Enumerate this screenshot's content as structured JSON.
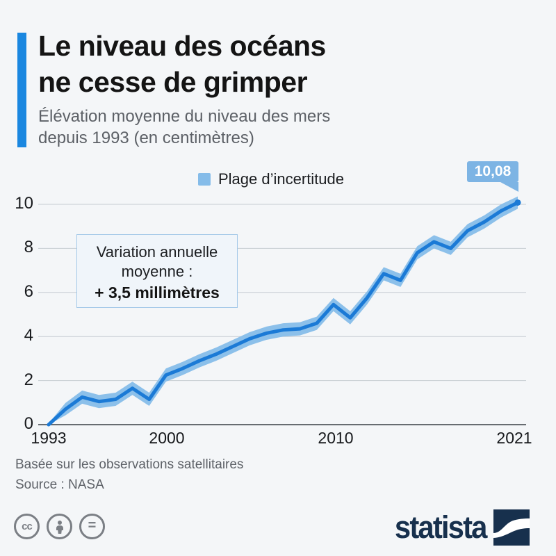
{
  "page": {
    "background": "#f4f6f8"
  },
  "header": {
    "title_line1": "Le niveau des océans",
    "title_line2": "ne cesse de grimper",
    "subtitle_line1": "Élévation moyenne du niveau des mers",
    "subtitle_line2": "depuis 1993 (en centimètres)",
    "accent_color": "#1a87e0"
  },
  "legend": {
    "label": "Plage d’incertitude",
    "swatch_color": "#85bce9"
  },
  "callout": {
    "value_label": "10,08",
    "bg_color": "#7db4e4"
  },
  "annotation": {
    "line1": "Variation annuelle",
    "line2": "moyenne :",
    "line3_bold": "+ 3,5 millimètres"
  },
  "chart_data": {
    "type": "line",
    "title": "Élévation moyenne du niveau des mers depuis 1993 (en centimètres)",
    "x": [
      1993,
      1994,
      1995,
      1996,
      1997,
      1998,
      1999,
      2000,
      2001,
      2002,
      2003,
      2004,
      2005,
      2006,
      2007,
      2008,
      2009,
      2010,
      2011,
      2012,
      2013,
      2014,
      2015,
      2016,
      2017,
      2018,
      2019,
      2020,
      2021
    ],
    "series": [
      {
        "name": "Élévation moyenne (cm)",
        "values": [
          0,
          0.7,
          1.25,
          1.05,
          1.15,
          1.65,
          1.15,
          2.25,
          2.55,
          2.9,
          3.2,
          3.55,
          3.9,
          4.15,
          4.3,
          4.35,
          4.6,
          5.45,
          4.85,
          5.75,
          6.85,
          6.55,
          7.8,
          8.3,
          8.0,
          8.8,
          9.2,
          9.7,
          10.08
        ]
      }
    ],
    "uncertainty_halfwidth": [
      0.06,
      0.28,
      0.3,
      0.3,
      0.3,
      0.3,
      0.3,
      0.3,
      0.3,
      0.3,
      0.3,
      0.3,
      0.3,
      0.3,
      0.3,
      0.3,
      0.3,
      0.3,
      0.3,
      0.3,
      0.3,
      0.3,
      0.3,
      0.3,
      0.3,
      0.3,
      0.3,
      0.3,
      0.28
    ],
    "yticks": [
      0,
      2,
      4,
      6,
      8,
      10
    ],
    "xticks": [
      1993,
      2000,
      2010,
      2021
    ],
    "ylim": [
      0,
      10.5
    ],
    "xlabel": "",
    "ylabel": "",
    "grid": true,
    "legend_position": "top",
    "line_color": "#1b7ad6",
    "band_color": "#8cc0ea",
    "grid_color": "#c6ccd2",
    "axis_color": "#383e44",
    "end_value_label": "10,08"
  },
  "footer": {
    "note": "Basée sur les observations satellitaires",
    "source": "Source : NASA"
  },
  "branding": {
    "logo_text": "statista",
    "logo_color": "#17304d",
    "license": {
      "cc": "cc",
      "equals": "="
    }
  }
}
